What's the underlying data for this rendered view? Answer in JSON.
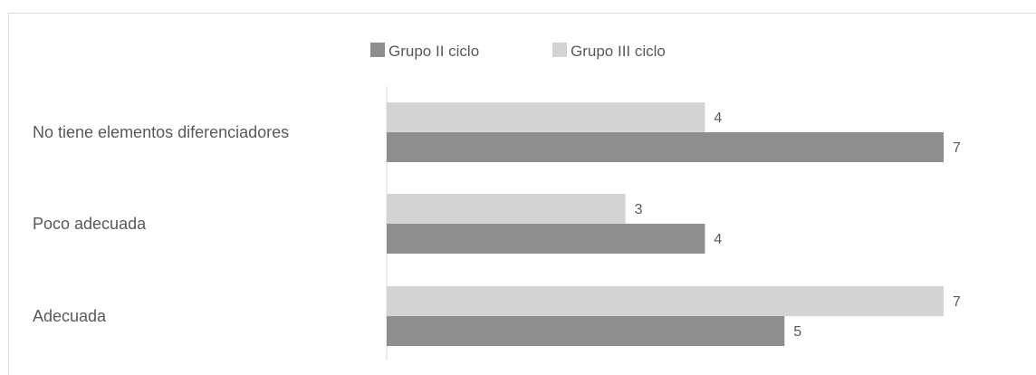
{
  "chart_data": {
    "type": "bar",
    "orientation": "horizontal",
    "categories": [
      "No tiene elementos diferenciadores",
      "Poco adecuada",
      "Adecuada"
    ],
    "series": [
      {
        "name": "Grupo III ciclo",
        "values": [
          4,
          3,
          7
        ],
        "color": "#d3d3d3"
      },
      {
        "name": "Grupo II ciclo",
        "values": [
          7,
          4,
          5
        ],
        "color": "#8e8e8e"
      }
    ],
    "legend": {
      "placement": "top",
      "entries": [
        {
          "name": "Grupo II ciclo",
          "color": "#8e8e8e"
        },
        {
          "name": "Grupo III ciclo",
          "color": "#d3d3d3"
        }
      ]
    },
    "xlim": [
      0,
      7
    ],
    "grid": false,
    "title": "",
    "xlabel": "",
    "ylabel": ""
  }
}
